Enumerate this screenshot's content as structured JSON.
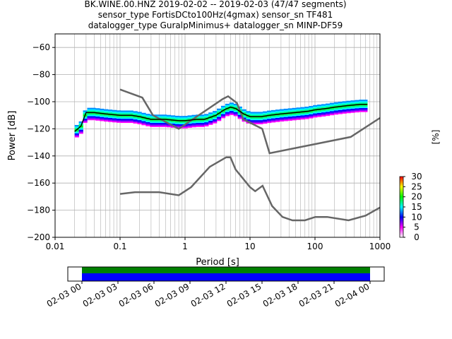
{
  "title": {
    "line1": "BK.WINE.00.HNZ   2019-02-02 -- 2019-02-03  (47/47 segments)",
    "line2": "sensor_type FortisDCto100Hz(4gmax) sensor_sn TF481",
    "line3": "datalogger_type GuralpMinimus+ datalogger_sn MINP-DF59"
  },
  "chart_data": [
    {
      "type": "heatmap",
      "title": "BK.WINE.00.HNZ   2019-02-02 -- 2019-02-03  (47/47 segments)",
      "xlabel": "Period [s]",
      "ylabel": "Power [dB]",
      "xscale": "log",
      "xlim": [
        0.01,
        1000
      ],
      "ylim": [
        -200,
        -50
      ],
      "xticks": [
        0.01,
        0.1,
        1,
        10,
        100,
        1000
      ],
      "xtick_labels": [
        "0.01",
        "0.1",
        "1",
        "10",
        "100",
        "1000"
      ],
      "yticks": [
        -200,
        -180,
        -160,
        -140,
        -120,
        -100,
        -80,
        -60
      ],
      "ytick_labels": [
        "−200",
        "−180",
        "−160",
        "−140",
        "−120",
        "−100",
        "−80",
        "−60"
      ],
      "grid": true,
      "mode_line": {
        "color": "#000000",
        "x": [
          0.02,
          0.025,
          0.03,
          0.04,
          0.06,
          0.1,
          0.15,
          0.2,
          0.3,
          0.5,
          0.8,
          1.0,
          1.5,
          2.0,
          3.0,
          4.0,
          5.0,
          6.0,
          8.0,
          10,
          15,
          20,
          30,
          50,
          80,
          100,
          150,
          200,
          300,
          500,
          640
        ],
        "y": [
          -122,
          -118,
          -108,
          -108,
          -109,
          -110,
          -110,
          -111,
          -113,
          -113,
          -114,
          -114,
          -113,
          -113,
          -110,
          -106,
          -104,
          -105,
          -109,
          -111,
          -111,
          -110,
          -109,
          -108,
          -107,
          -106,
          -105,
          -104,
          -103,
          -102,
          -102
        ]
      },
      "noise_models": [
        {
          "name": "NHNM",
          "color": "#666666",
          "x": [
            0.1,
            0.22,
            0.32,
            0.8,
            3.8,
            4.6,
            6.3,
            7.9,
            15.4,
            20,
            354.8,
            1000
          ],
          "y": [
            -91,
            -97,
            -110,
            -120,
            -98,
            -96,
            -101,
            -113,
            -120,
            -138,
            -126,
            -112
          ]
        },
        {
          "name": "NLNM",
          "color": "#666666",
          "x": [
            0.1,
            0.17,
            0.4,
            0.8,
            1.24,
            2.4,
            4.3,
            5.0,
            6.0,
            10,
            12,
            15.6,
            21.9,
            31.6,
            45,
            70,
            101,
            154,
            328,
            600,
            1000
          ],
          "y": [
            -168,
            -166.7,
            -166.7,
            -169,
            -163,
            -148,
            -141,
            -141,
            -150,
            -163,
            -166,
            -162,
            -177,
            -185,
            -187.5,
            -187.5,
            -185,
            -185,
            -187.5,
            -184,
            -178
          ]
        }
      ],
      "colorbar": {
        "label": "[%]",
        "ticks": [
          0,
          5,
          10,
          15,
          20,
          25,
          30
        ],
        "range": [
          0,
          30
        ],
        "colors": [
          "#ffffff",
          "#ff00ff",
          "#0000ff",
          "#00ffff",
          "#00ff00",
          "#ffff00",
          "#ff0000"
        ]
      }
    },
    {
      "type": "timeline",
      "xtick_labels": [
        "02-03 00",
        "02-03 03",
        "02-03 06",
        "02-03 09",
        "02-03 12",
        "02-03 15",
        "02-03 18",
        "02-03 21",
        "02-04 00"
      ],
      "coverage": {
        "start": "02-03 00",
        "end": "02-04 00",
        "upper_color": "#008000",
        "lower_color": "#0000ff"
      }
    }
  ]
}
